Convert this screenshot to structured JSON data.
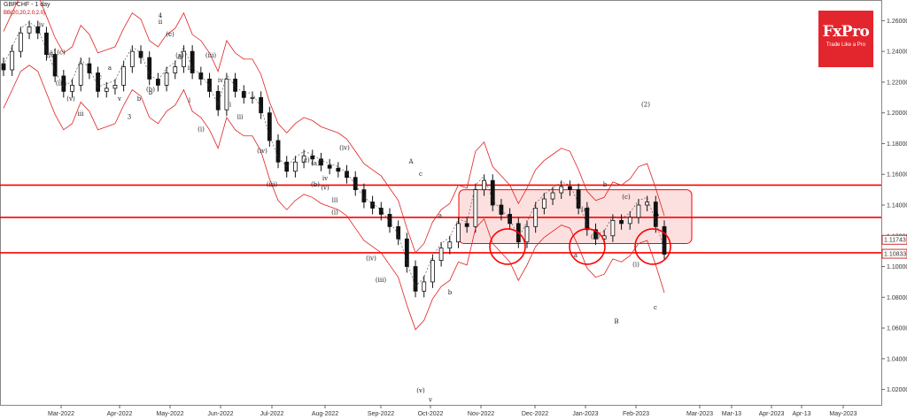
{
  "header": {
    "title": "GBPCHF - 1 day",
    "indicator": "BB(20,20,2.0,2.0)"
  },
  "logo": {
    "brand": "FxPro",
    "tagline": "Trade Like a Pro"
  },
  "colors": {
    "lines": "#ff0000",
    "zone_fill": "#f9c4c4",
    "bb": "#e02020",
    "candle": "#111111",
    "price_tag": "#c00000"
  },
  "chart_data": {
    "type": "candlestick",
    "title": "GBPCHF - 1 day",
    "ylim": [
      1.01,
      1.27
    ],
    "y_ticks": [
      "1.26000",
      "1.24000",
      "1.22000",
      "1.20000",
      "1.18000",
      "1.16000",
      "1.14000",
      "1.12000",
      "1.10000",
      "1.08000",
      "1.06000",
      "1.04000",
      "1.02000"
    ],
    "x_labels": [
      "Mar-2022",
      "Apr-2022",
      "May-2022",
      "Jun-2022",
      "Jul-2022",
      "Aug-2022",
      "Sep-2022",
      "Oct-2022",
      "Nov-2022",
      "Dec-2022",
      "Jan-2023",
      "Feb-2023",
      "Mar-2023",
      "Mar-13",
      "Apr-2023",
      "Apr-13",
      "May-2023"
    ],
    "price_tags": [
      {
        "label": "1.11743",
        "value": 1.11743
      },
      {
        "label": "1.10833",
        "value": 1.10833
      }
    ],
    "horizontal_lines": [
      1.153,
      1.132,
      1.109
    ],
    "zone": {
      "from": "Oct-2022",
      "to": "Mar-2023",
      "top": 1.15,
      "bottom": 1.115
    },
    "circles": [
      {
        "x": "Nov-2022",
        "y": 1.113
      },
      {
        "x": "Jan-2023",
        "y": 1.113
      },
      {
        "x": "Feb-2023",
        "y": 1.113
      }
    ],
    "close_series": [
      1.228,
      1.24,
      1.252,
      1.256,
      1.252,
      1.238,
      1.224,
      1.214,
      1.218,
      1.232,
      1.226,
      1.214,
      1.216,
      1.218,
      1.23,
      1.24,
      1.236,
      1.222,
      1.218,
      1.226,
      1.23,
      1.24,
      1.226,
      1.222,
      1.214,
      1.202,
      1.222,
      1.214,
      1.21,
      1.21,
      1.2,
      1.182,
      1.168,
      1.162,
      1.168,
      1.172,
      1.17,
      1.166,
      1.164,
      1.162,
      1.158,
      1.15,
      1.142,
      1.138,
      1.134,
      1.126,
      1.118,
      1.1,
      1.084,
      1.09,
      1.104,
      1.112,
      1.116,
      1.128,
      1.126,
      1.15,
      1.156,
      1.14,
      1.134,
      1.128,
      1.116,
      1.126,
      1.138,
      1.144,
      1.148,
      1.152,
      1.15,
      1.138,
      1.124,
      1.118,
      1.12,
      1.13,
      1.128,
      1.132,
      1.14,
      1.142,
      1.126,
      1.108
    ],
    "wave_labels": [
      {
        "t": "(iv)",
        "x": "Mar-2022",
        "y": 1.236
      },
      {
        "t": "(iii)",
        "x": "Mar-2022",
        "y": 1.218
      },
      {
        "t": "(v)",
        "x": "Mar-2022",
        "y": 1.208
      },
      {
        "t": "iii",
        "x": "Mar-2022",
        "y": 1.198
      },
      {
        "t": "iv",
        "x": "Mar-2022",
        "y": 1.256
      },
      {
        "t": "(a)",
        "x": "Mar-2022",
        "y": 1.238
      },
      {
        "t": "(c)",
        "x": "Mar-2022",
        "y": 1.238
      },
      {
        "t": "a",
        "x": "Apr-2022",
        "y": 1.228
      },
      {
        "t": "v",
        "x": "Apr-2022",
        "y": 1.208
      },
      {
        "t": "3",
        "x": "Apr-2022",
        "y": 1.196
      },
      {
        "t": "b",
        "x": "Apr-2022",
        "y": 1.208
      },
      {
        "t": "c",
        "x": "Apr-2022",
        "y": 1.222
      },
      {
        "t": "4",
        "x": "May-2022",
        "y": 1.262
      },
      {
        "t": "c",
        "x": "May-2022",
        "y": 1.25
      },
      {
        "t": "a",
        "x": "May-2022",
        "y": 1.235
      },
      {
        "t": "i",
        "x": "May-2022",
        "y": 1.207
      },
      {
        "t": "b",
        "x": "May-2022",
        "y": 1.212
      },
      {
        "t": "ii",
        "x": "May-2022",
        "y": 1.258
      },
      {
        "t": "(c)",
        "x": "May-2022",
        "y": 1.25
      },
      {
        "t": "(a)",
        "x": "May-2022",
        "y": 1.236
      },
      {
        "t": "ii",
        "x": "May-2022",
        "y": 1.228
      },
      {
        "t": "(b)",
        "x": "May-2022",
        "y": 1.214
      },
      {
        "t": "(iii)",
        "x": "Jun-2022",
        "y": 1.236
      },
      {
        "t": "iv",
        "x": "Jun-2022",
        "y": 1.22
      },
      {
        "t": "i",
        "x": "Jun-2022",
        "y": 1.204
      },
      {
        "t": "iii",
        "x": "Jun-2022",
        "y": 1.196
      },
      {
        "t": "(i)",
        "x": "Jun-2022",
        "y": 1.188
      },
      {
        "t": "(iv)",
        "x": "Jul-2022",
        "y": 1.174
      },
      {
        "t": "(iii)",
        "x": "Jul-2022",
        "y": 1.152
      },
      {
        "t": "(a)",
        "x": "Aug-2022",
        "y": 1.166
      },
      {
        "t": "(v)",
        "x": "Aug-2022",
        "y": 1.15
      },
      {
        "t": "iii",
        "x": "Aug-2022",
        "y": 1.142
      },
      {
        "t": "(iv)",
        "x": "Aug-2022",
        "y": 1.176
      },
      {
        "t": "(c)",
        "x": "Aug-2022",
        "y": 1.168
      },
      {
        "t": "(b)",
        "x": "Aug-2022",
        "y": 1.152
      },
      {
        "t": "iv",
        "x": "Aug-2022",
        "y": 1.156
      },
      {
        "t": "(i)",
        "x": "Aug-2022",
        "y": 1.134
      },
      {
        "t": "(iv)",
        "x": "Sep-2022",
        "y": 1.104
      },
      {
        "t": "(iii)",
        "x": "Sep-2022",
        "y": 1.09
      },
      {
        "t": "(v)",
        "x": "Oct-2022",
        "y": 1.018
      },
      {
        "t": "v",
        "x": "Oct-2022",
        "y": 1.012
      },
      {
        "t": "a",
        "x": "Oct-2022",
        "y": 1.132
      },
      {
        "t": "b",
        "x": "Oct-2022",
        "y": 1.082
      },
      {
        "t": "A",
        "x": "Oct-2022",
        "y": 1.167
      },
      {
        "t": "c",
        "x": "Oct-2022",
        "y": 1.159
      },
      {
        "t": "a",
        "x": "Jan-2023",
        "y": 1.106
      },
      {
        "t": "(a)",
        "x": "Jan-2023",
        "y": 1.136
      },
      {
        "t": "(b)",
        "x": "Jan-2023",
        "y": 1.118
      },
      {
        "t": "b",
        "x": "Jan-2023",
        "y": 1.152
      },
      {
        "t": "(c)",
        "x": "Feb-2023",
        "y": 1.144
      },
      {
        "t": "(i)",
        "x": "Feb-2023",
        "y": 1.1
      },
      {
        "t": "(2)",
        "x": "Feb-2023",
        "y": 1.204
      },
      {
        "t": "c",
        "x": "Feb-2023",
        "y": 1.072
      },
      {
        "t": "B",
        "x": "Feb-2023",
        "y": 1.063
      }
    ]
  }
}
